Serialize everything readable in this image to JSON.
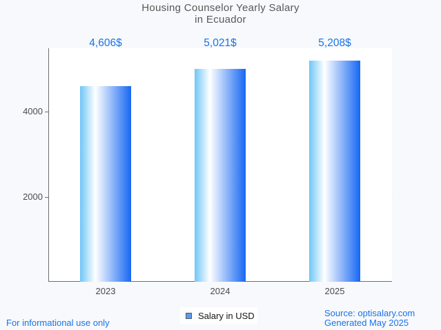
{
  "page": {
    "background": "#f7f9fc",
    "accent_blue": "#1a73e8"
  },
  "chart": {
    "title_lines": [
      "Housing Counselor Yearly Salary",
      "in Ecuador"
    ],
    "bar_gradient": [
      "#70c6f7",
      "#ffffff",
      "#1667f3"
    ],
    "bar_gradient_white_stop_pct": 30
  },
  "chart_data": {
    "type": "bar",
    "title": "Housing Counselor Yearly Salary in Ecuador",
    "categories": [
      "2023",
      "2024",
      "2025"
    ],
    "series": [
      {
        "name": "Salary in USD",
        "values": [
          4606,
          5021,
          5208
        ]
      }
    ],
    "value_labels": [
      "4,606$",
      "5,021$",
      "5,208$"
    ],
    "xlabel": "",
    "ylabel": "",
    "ylim": [
      0,
      5500
    ],
    "yticks": [
      2000,
      4000
    ],
    "grid": true,
    "legend_position": "bottom"
  },
  "legend": {
    "swatch_color": "#5b9ced",
    "label": "Salary in USD"
  },
  "footer": {
    "left": "For informational use only",
    "source": "Source: optisalary.com",
    "generated": "Generated May 2025"
  }
}
